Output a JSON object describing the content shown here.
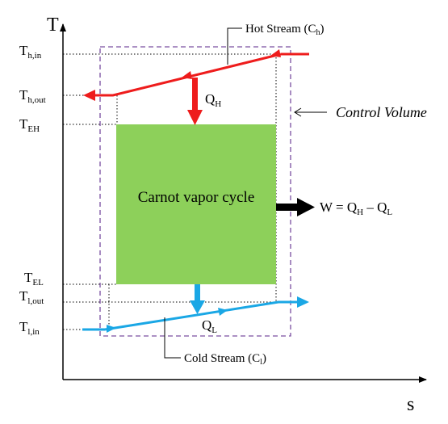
{
  "axes": {
    "y_label": "T",
    "x_label": "s"
  },
  "temps": {
    "th_in": {
      "main": "T",
      "sub": "h,in"
    },
    "th_out": {
      "main": "T",
      "sub": "h,out"
    },
    "teh": {
      "main": "T",
      "sub": "EH"
    },
    "tel": {
      "main": "T",
      "sub": "EL"
    },
    "tl_out": {
      "main": "T",
      "sub": "l,out"
    },
    "tl_in": {
      "main": "T",
      "sub": "l,in"
    }
  },
  "hot_stream": {
    "label": "Hot Stream (C",
    "sub": "h",
    "close": ")"
  },
  "cold_stream": {
    "label": "Cold Stream (C",
    "sub": "l",
    "close": ")"
  },
  "control_volume": "Control Volume",
  "cycle_label": "Carnot vapor cycle",
  "heat_in": {
    "main": "Q",
    "sub": "H"
  },
  "heat_out": {
    "main": "Q",
    "sub": "L"
  },
  "work": {
    "lhs": "W = Q",
    "sub1": "H",
    "minus": " – Q",
    "sub2": "L"
  },
  "colors": {
    "hot": "#ee1c1c",
    "cold": "#1aa7e5",
    "cycle": "#8dd05a",
    "control_volume": "#7a4fa0",
    "axis": "#000000"
  }
}
